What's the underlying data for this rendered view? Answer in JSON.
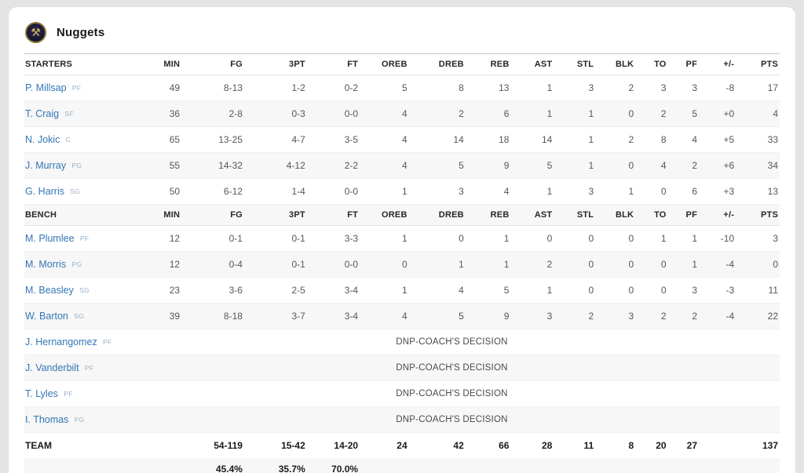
{
  "team": {
    "name": "Nuggets"
  },
  "icons": {
    "team_logo_glyph": "⚒"
  },
  "colors": {
    "link_blue": "#3276b5",
    "position_label": "#9ab0c5",
    "logo_gold": "#d9b45c",
    "logo_navy": "#15152e",
    "zebra_gray": "#f7f7f7"
  },
  "table": {
    "starters_label": "STARTERS",
    "bench_label": "BENCH",
    "team_label": "TEAM",
    "columns": [
      "MIN",
      "FG",
      "3PT",
      "FT",
      "OREB",
      "DREB",
      "REB",
      "AST",
      "STL",
      "BLK",
      "TO",
      "PF",
      "+/-",
      "PTS"
    ],
    "starters": [
      {
        "name": "P. Millsap",
        "pos": "PF",
        "stats": [
          "49",
          "8-13",
          "1-2",
          "0-2",
          "5",
          "8",
          "13",
          "1",
          "3",
          "2",
          "3",
          "3",
          "-8",
          "17"
        ]
      },
      {
        "name": "T. Craig",
        "pos": "SF",
        "stats": [
          "36",
          "2-8",
          "0-3",
          "0-0",
          "4",
          "2",
          "6",
          "1",
          "1",
          "0",
          "2",
          "5",
          "+0",
          "4"
        ]
      },
      {
        "name": "N. Jokic",
        "pos": "C",
        "stats": [
          "65",
          "13-25",
          "4-7",
          "3-5",
          "4",
          "14",
          "18",
          "14",
          "1",
          "2",
          "8",
          "4",
          "+5",
          "33"
        ]
      },
      {
        "name": "J. Murray",
        "pos": "PG",
        "stats": [
          "55",
          "14-32",
          "4-12",
          "2-2",
          "4",
          "5",
          "9",
          "5",
          "1",
          "0",
          "4",
          "2",
          "+6",
          "34"
        ]
      },
      {
        "name": "G. Harris",
        "pos": "SG",
        "stats": [
          "50",
          "6-12",
          "1-4",
          "0-0",
          "1",
          "3",
          "4",
          "1",
          "3",
          "1",
          "0",
          "6",
          "+3",
          "13"
        ]
      }
    ],
    "bench": [
      {
        "name": "M. Plumlee",
        "pos": "PF",
        "stats": [
          "12",
          "0-1",
          "0-1",
          "3-3",
          "1",
          "0",
          "1",
          "0",
          "0",
          "0",
          "1",
          "1",
          "-10",
          "3"
        ]
      },
      {
        "name": "M. Morris",
        "pos": "PG",
        "stats": [
          "12",
          "0-4",
          "0-1",
          "0-0",
          "0",
          "1",
          "1",
          "2",
          "0",
          "0",
          "0",
          "1",
          "-4",
          "0"
        ]
      },
      {
        "name": "M. Beasley",
        "pos": "SG",
        "stats": [
          "23",
          "3-6",
          "2-5",
          "3-4",
          "1",
          "4",
          "5",
          "1",
          "0",
          "0",
          "0",
          "3",
          "-3",
          "11"
        ]
      },
      {
        "name": "W. Barton",
        "pos": "SG",
        "stats": [
          "39",
          "8-18",
          "3-7",
          "3-4",
          "4",
          "5",
          "9",
          "3",
          "2",
          "3",
          "2",
          "2",
          "-4",
          "22"
        ]
      }
    ],
    "dnp": [
      {
        "name": "J. Hernangomez",
        "pos": "PF",
        "note": "DNP-COACH'S DECISION"
      },
      {
        "name": "J. Vanderbilt",
        "pos": "PF",
        "note": "DNP-COACH'S DECISION"
      },
      {
        "name": "T. Lyles",
        "pos": "PF",
        "note": "DNP-COACH'S DECISION"
      },
      {
        "name": "I. Thomas",
        "pos": "PG",
        "note": "DNP-COACH'S DECISION"
      }
    ],
    "totals": [
      "",
      "54-119",
      "15-42",
      "14-20",
      "24",
      "42",
      "66",
      "28",
      "11",
      "8",
      "20",
      "27",
      "",
      "137"
    ],
    "percentages": [
      "",
      "45.4%",
      "35.7%",
      "70.0%",
      "",
      "",
      "",
      "",
      "",
      "",
      "",
      "",
      "",
      ""
    ]
  }
}
